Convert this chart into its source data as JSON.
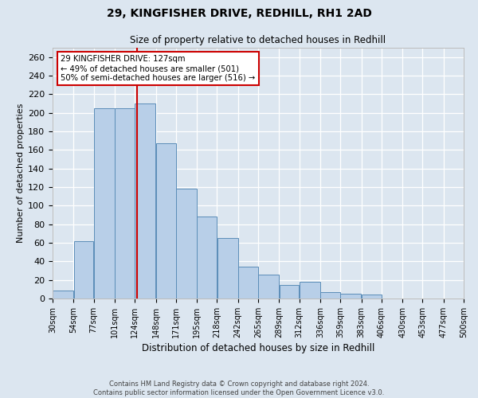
{
  "title1": "29, KINGFISHER DRIVE, REDHILL, RH1 2AD",
  "title2": "Size of property relative to detached houses in Redhill",
  "xlabel": "Distribution of detached houses by size in Redhill",
  "ylabel": "Number of detached properties",
  "bar_color": "#b8cfe8",
  "bar_edge_color": "#5b8db8",
  "bg_color": "#dce6f0",
  "fig_color": "#dce6f0",
  "grid_color": "#ffffff",
  "marker_color": "#cc0000",
  "marker_value": 127,
  "bin_edges": [
    30,
    54,
    77,
    101,
    124,
    148,
    171,
    195,
    218,
    242,
    265,
    289,
    312,
    336,
    359,
    383,
    406,
    430,
    453,
    477,
    500
  ],
  "bin_labels": [
    "30sqm",
    "54sqm",
    "77sqm",
    "101sqm",
    "124sqm",
    "148sqm",
    "171sqm",
    "195sqm",
    "218sqm",
    "242sqm",
    "265sqm",
    "289sqm",
    "312sqm",
    "336sqm",
    "359sqm",
    "383sqm",
    "406sqm",
    "430sqm",
    "453sqm",
    "477sqm",
    "500sqm"
  ],
  "heights": [
    9,
    62,
    205,
    205,
    210,
    167,
    118,
    88,
    65,
    34,
    26,
    15,
    18,
    7,
    5,
    4,
    0,
    0,
    0,
    0
  ],
  "ylim": [
    0,
    270
  ],
  "annotation_title": "29 KINGFISHER DRIVE: 127sqm",
  "annotation_line1": "← 49% of detached houses are smaller (501)",
  "annotation_line2": "50% of semi-detached houses are larger (516) →",
  "footer1": "Contains HM Land Registry data © Crown copyright and database right 2024.",
  "footer2": "Contains public sector information licensed under the Open Government Licence v3.0."
}
